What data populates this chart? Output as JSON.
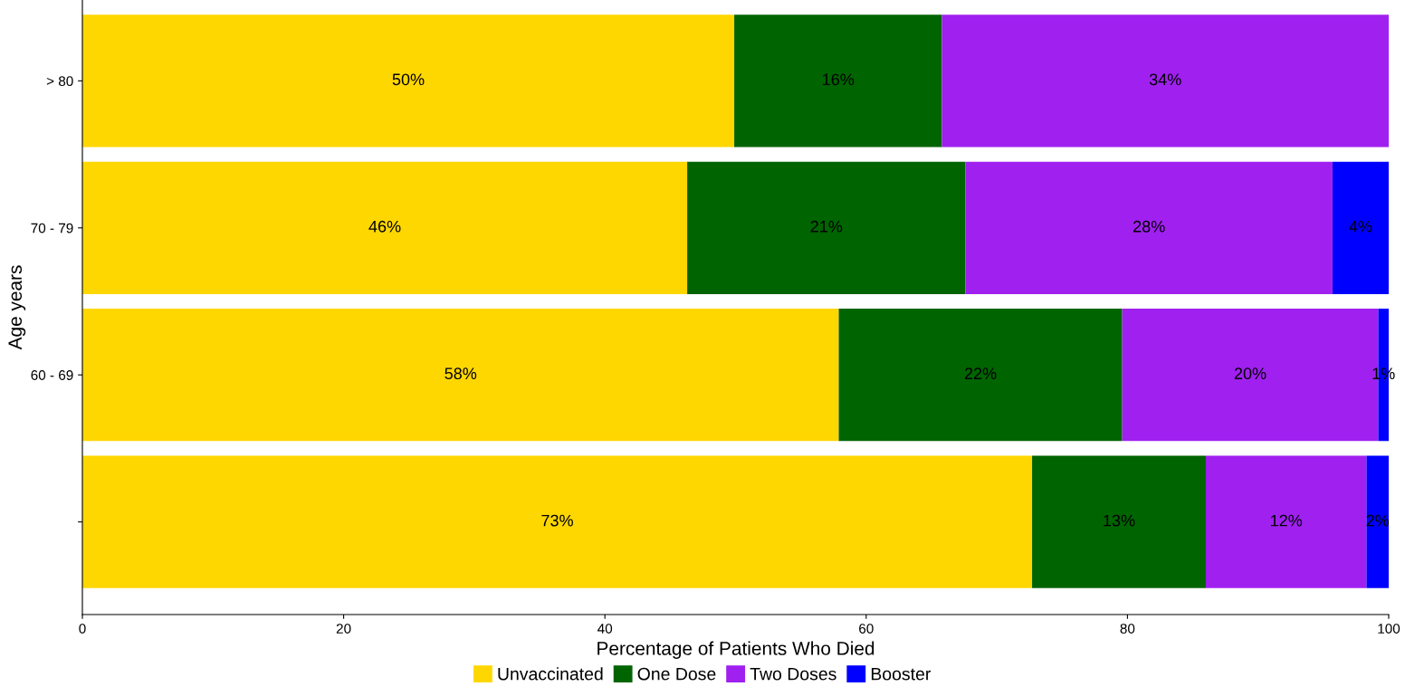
{
  "chart_data": {
    "type": "bar",
    "orientation": "horizontal",
    "stacked": true,
    "xlabel": "Percentage of Patients Who Died",
    "ylabel": "Age years",
    "categories": [
      "> 80",
      "70 - 79",
      "60 - 69",
      null
    ],
    "series": [
      {
        "name": "Unvaccinated",
        "color": "#ffd700",
        "values": [
          49.9,
          46.3,
          57.9,
          72.7
        ],
        "value_labels": [
          "50%",
          "46%",
          "58%",
          "73%"
        ]
      },
      {
        "name": "One Dose",
        "color": "#006400",
        "values": [
          15.9,
          21.3,
          21.7,
          13.3
        ],
        "value_labels": [
          "16%",
          "21%",
          "22%",
          "13%"
        ]
      },
      {
        "name": "Two Doses",
        "color": "#a020f0",
        "values": [
          34.2,
          28.1,
          19.6,
          12.3
        ],
        "value_labels": [
          "34%",
          "28%",
          "20%",
          "12%"
        ]
      },
      {
        "name": "Booster",
        "color": "#0000ff",
        "values": [
          null,
          4.3,
          0.8,
          1.7
        ],
        "value_labels": [
          null,
          "4%",
          "1%",
          "2%"
        ]
      }
    ],
    "xlim": [
      0,
      100
    ],
    "xticks": [
      0,
      20,
      40,
      60,
      80,
      100
    ],
    "grid": false,
    "legend": "bottom"
  }
}
